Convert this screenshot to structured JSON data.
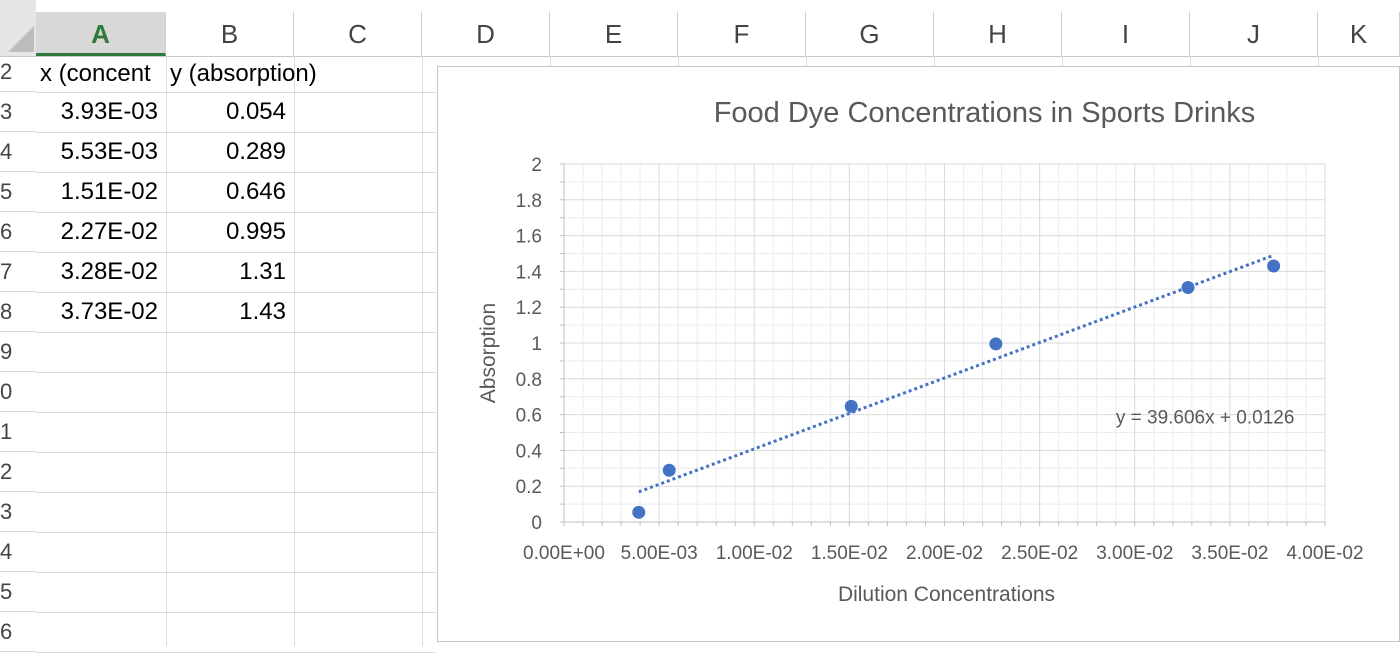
{
  "columns": [
    "A",
    "B",
    "C",
    "D",
    "E",
    "F",
    "G",
    "H",
    "I",
    "J",
    "K"
  ],
  "selected_column": "A",
  "rows": [
    "2",
    "3",
    "4",
    "5",
    "6",
    "7",
    "8",
    "9",
    "0",
    "1",
    "2",
    "3",
    "4",
    "5",
    "6"
  ],
  "sheet": {
    "header": {
      "a": "x (concent",
      "b": "y (absorption)"
    },
    "data": [
      {
        "a": "3.93E-03",
        "b": "0.054"
      },
      {
        "a": "5.53E-03",
        "b": "0.289"
      },
      {
        "a": "1.51E-02",
        "b": "0.646"
      },
      {
        "a": "2.27E-02",
        "b": "0.995"
      },
      {
        "a": "3.28E-02",
        "b": "1.31"
      },
      {
        "a": "3.73E-02",
        "b": "1.43"
      }
    ]
  },
  "chart_data": {
    "type": "scatter",
    "title": "Food Dye Concentrations in Sports Drinks",
    "xlabel": "Dilution Concentrations",
    "ylabel": "Absorption",
    "xlim": [
      0,
      0.04
    ],
    "ylim": [
      0,
      2
    ],
    "x_ticks": [
      "0.00E+00",
      "5.00E-03",
      "1.00E-02",
      "1.50E-02",
      "2.00E-02",
      "2.50E-02",
      "3.00E-02",
      "3.50E-02",
      "4.00E-02"
    ],
    "y_ticks": [
      "0",
      "0.2",
      "0.4",
      "0.6",
      "0.8",
      "1",
      "1.2",
      "1.4",
      "1.6",
      "1.8",
      "2"
    ],
    "grid": true,
    "series": [
      {
        "x": [
          0.00393,
          0.00553,
          0.0151,
          0.0227,
          0.0328,
          0.0373
        ],
        "y": [
          0.054,
          0.289,
          0.646,
          0.995,
          1.31,
          1.43
        ],
        "color": "#4472c4"
      }
    ],
    "trendline": {
      "slope": 39.606,
      "intercept": 0.0126,
      "x_range": [
        0.00393,
        0.0373
      ],
      "style": "dotted",
      "color": "#4472c4",
      "equation_label": "y = 39.606x + 0.0126"
    }
  }
}
